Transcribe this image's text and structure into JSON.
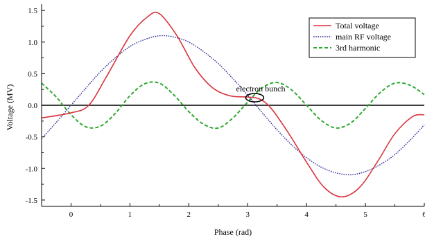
{
  "chart_data": {
    "type": "line",
    "xlabel": "Phase (rad)",
    "ylabel": "Voltage (MV)",
    "xlim": [
      -0.5,
      6.0
    ],
    "ylim": [
      -1.6,
      1.6
    ],
    "x_ticks": [
      0,
      1,
      2,
      3,
      4,
      5,
      6
    ],
    "x_tick_labels": [
      "0",
      "1",
      "2",
      "3",
      "4",
      "5",
      "6"
    ],
    "y_ticks": [
      -1.5,
      -1.0,
      -0.5,
      0.0,
      0.5,
      1.0,
      1.5
    ],
    "y_tick_labels": [
      "-1.5",
      "-1.0",
      "-0.5",
      "0.0",
      "0.5",
      "1.0",
      "1.5"
    ],
    "grid": false,
    "legend_position": "top-right",
    "zero_line": true,
    "series": [
      {
        "name": "Total voltage",
        "color": "#d9363e",
        "style": "solid",
        "x": [
          -0.5,
          0.0,
          0.3,
          0.6,
          1.0,
          1.3,
          1.5,
          1.8,
          2.1,
          2.4,
          2.7,
          3.0,
          3.2,
          3.4,
          3.7,
          4.0,
          4.3,
          4.6,
          4.9,
          5.2,
          5.5,
          5.8,
          6.0
        ],
        "y": [
          -0.2,
          -0.12,
          0.0,
          0.45,
          1.1,
          1.4,
          1.45,
          1.1,
          0.6,
          0.28,
          0.15,
          0.13,
          0.1,
          -0.05,
          -0.45,
          -0.9,
          -1.3,
          -1.45,
          -1.3,
          -0.9,
          -0.45,
          -0.18,
          -0.15
        ]
      },
      {
        "name": "main RF voltage",
        "color": "#2b2b9a",
        "style": "dotted",
        "x": [
          -0.5,
          -0.25,
          0.0,
          0.25,
          0.5,
          0.75,
          1.0,
          1.25,
          1.5,
          1.75,
          2.0,
          2.25,
          2.5,
          2.75,
          3.0,
          3.25,
          3.5,
          3.75,
          4.0,
          4.25,
          4.5,
          4.75,
          5.0,
          5.25,
          5.5,
          5.75,
          6.0
        ],
        "y": [
          -0.53,
          -0.27,
          0.0,
          0.27,
          0.53,
          0.75,
          0.93,
          1.04,
          1.1,
          1.08,
          1.0,
          0.85,
          0.66,
          0.42,
          0.16,
          -0.12,
          -0.39,
          -0.63,
          -0.83,
          -0.98,
          -1.07,
          -1.1,
          -1.05,
          -0.94,
          -0.78,
          -0.56,
          -0.31
        ]
      },
      {
        "name": "3rd harmonic",
        "color": "#2ea82e",
        "style": "dashed",
        "x": [
          -0.5,
          -0.25,
          0.0,
          0.25,
          0.5,
          0.75,
          1.0,
          1.25,
          1.5,
          1.75,
          2.0,
          2.25,
          2.5,
          2.75,
          3.0,
          3.25,
          3.5,
          3.75,
          4.0,
          4.25,
          4.5,
          4.75,
          5.0,
          5.25,
          5.5,
          5.75,
          6.0
        ],
        "y": [
          0.35,
          0.13,
          -0.15,
          -0.34,
          -0.33,
          -0.13,
          0.15,
          0.34,
          0.35,
          0.16,
          -0.1,
          -0.3,
          -0.36,
          -0.2,
          0.05,
          0.28,
          0.36,
          0.24,
          0.0,
          -0.24,
          -0.36,
          -0.28,
          -0.05,
          0.2,
          0.35,
          0.32,
          0.17
        ]
      }
    ],
    "annotation": {
      "text": "electron bunch",
      "x": 3.12,
      "y": 0.12
    }
  }
}
